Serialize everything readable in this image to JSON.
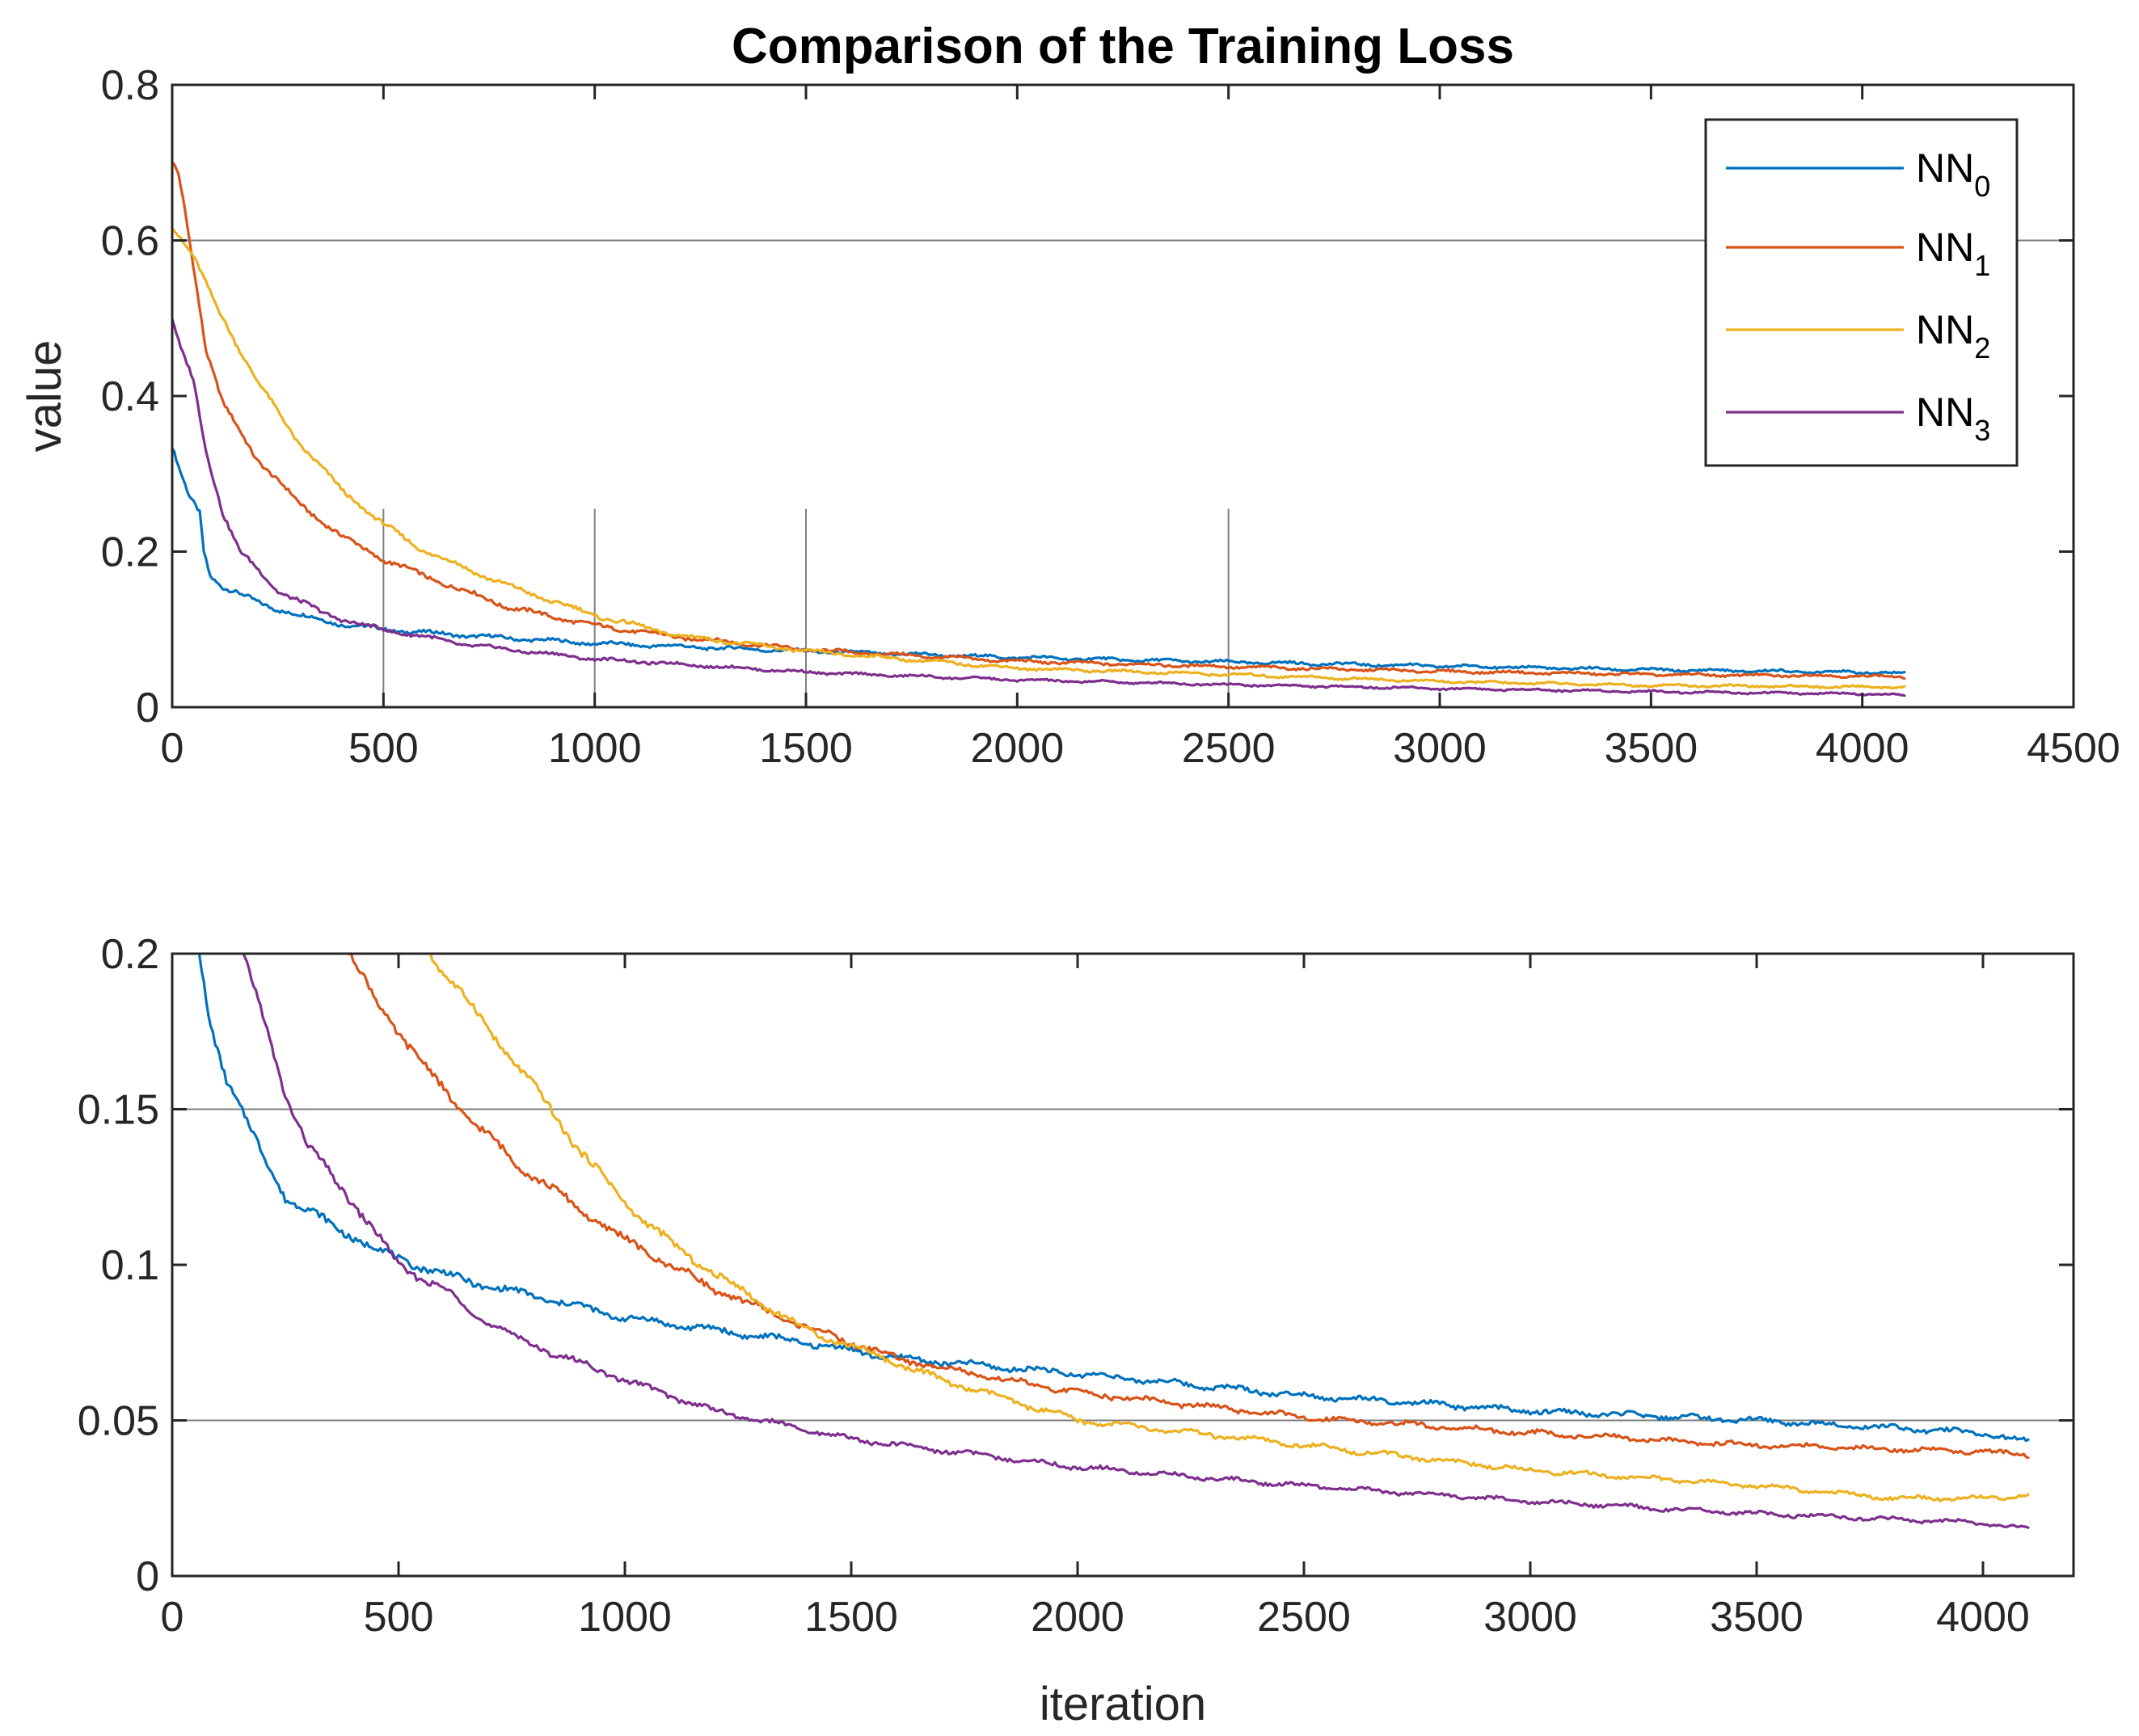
{
  "chart_data": [
    {
      "type": "line",
      "title": "Comparison of the Training Loss",
      "xlabel": "",
      "ylabel": "value",
      "xlim": [
        0,
        4500
      ],
      "ylim": [
        0,
        0.8
      ],
      "xticks": [
        "0",
        "500",
        "1000",
        "1500",
        "2000",
        "2500",
        "3000",
        "3500",
        "4000",
        "4500"
      ],
      "yticks": [
        "0",
        "0.2",
        "0.4",
        "0.6",
        "0.8"
      ],
      "grid_y": [
        0.6
      ],
      "vlines": [
        {
          "x": 500,
          "y_top": 0.255
        },
        {
          "x": 1000,
          "y_top": 0.255
        },
        {
          "x": 1500,
          "y_top": 0.255
        },
        {
          "x": 2500,
          "y_top": 0.255
        }
      ],
      "legend": {
        "location": "top-right",
        "entries": [
          {
            "base": "NN",
            "sub": "0"
          },
          {
            "base": "NN",
            "sub": "1"
          },
          {
            "base": "NN",
            "sub": "2"
          },
          {
            "base": "NN",
            "sub": "3"
          }
        ]
      },
      "series": [
        {
          "name": "NN0",
          "color": "#0072BD",
          "points": [
            [
              0,
              0.335
            ],
            [
              20,
              0.3
            ],
            [
              40,
              0.27
            ],
            [
              65,
              0.25
            ],
            [
              75,
              0.2
            ],
            [
              90,
              0.17
            ],
            [
              120,
              0.155
            ],
            [
              200,
              0.135
            ],
            [
              300,
              0.118
            ],
            [
              400,
              0.107
            ],
            [
              500,
              0.1
            ],
            [
              700,
              0.092
            ],
            [
              1000,
              0.082
            ],
            [
              1500,
              0.072
            ],
            [
              2000,
              0.064
            ],
            [
              2500,
              0.058
            ],
            [
              3000,
              0.053
            ],
            [
              3500,
              0.048
            ],
            [
              4000,
              0.045
            ],
            [
              4100,
              0.043
            ]
          ]
        },
        {
          "name": "NN1",
          "color": "#D95319",
          "points": [
            [
              0,
              0.7
            ],
            [
              15,
              0.685
            ],
            [
              30,
              0.64
            ],
            [
              50,
              0.57
            ],
            [
              80,
              0.46
            ],
            [
              120,
              0.39
            ],
            [
              200,
              0.32
            ],
            [
              300,
              0.262
            ],
            [
              400,
              0.22
            ],
            [
              500,
              0.19
            ],
            [
              600,
              0.168
            ],
            [
              800,
              0.128
            ],
            [
              1000,
              0.105
            ],
            [
              1200,
              0.09
            ],
            [
              1500,
              0.074
            ],
            [
              2000,
              0.059
            ],
            [
              2500,
              0.052
            ],
            [
              3000,
              0.046
            ],
            [
              3500,
              0.042
            ],
            [
              4000,
              0.04
            ],
            [
              4100,
              0.039
            ]
          ]
        },
        {
          "name": "NN2",
          "color": "#EDB120",
          "points": [
            [
              0,
              0.62
            ],
            [
              50,
              0.58
            ],
            [
              100,
              0.52
            ],
            [
              200,
              0.42
            ],
            [
              300,
              0.34
            ],
            [
              400,
              0.28
            ],
            [
              500,
              0.235
            ],
            [
              600,
              0.2
            ],
            [
              800,
              0.155
            ],
            [
              1000,
              0.118
            ],
            [
              1200,
              0.092
            ],
            [
              1500,
              0.072
            ],
            [
              2000,
              0.05
            ],
            [
              2500,
              0.042
            ],
            [
              3000,
              0.033
            ],
            [
              3500,
              0.028
            ],
            [
              4000,
              0.026
            ],
            [
              4100,
              0.026
            ]
          ]
        },
        {
          "name": "NN3",
          "color": "#7E2F8E",
          "points": [
            [
              0,
              0.5
            ],
            [
              20,
              0.46
            ],
            [
              50,
              0.42
            ],
            [
              80,
              0.33
            ],
            [
              120,
              0.25
            ],
            [
              160,
              0.2
            ],
            [
              250,
              0.15
            ],
            [
              350,
              0.123
            ],
            [
              450,
              0.105
            ],
            [
              500,
              0.1
            ],
            [
              700,
              0.08
            ],
            [
              1000,
              0.062
            ],
            [
              1500,
              0.045
            ],
            [
              2000,
              0.035
            ],
            [
              2500,
              0.029
            ],
            [
              3000,
              0.024
            ],
            [
              3500,
              0.02
            ],
            [
              4000,
              0.017
            ],
            [
              4100,
              0.015
            ]
          ]
        }
      ]
    },
    {
      "type": "line",
      "title": "",
      "xlabel": "iteration",
      "ylabel": "",
      "xlim": [
        0,
        4200
      ],
      "ylim": [
        0,
        0.2
      ],
      "xticks": [
        "0",
        "500",
        "1000",
        "1500",
        "2000",
        "2500",
        "3000",
        "3500",
        "4000"
      ],
      "yticks": [
        "0",
        "0.05",
        "0.1",
        "0.15",
        "0.2"
      ],
      "grid_y": [
        0.05,
        0.15
      ],
      "series": [
        {
          "name": "NN0",
          "color": "#0072BD",
          "points": [
            [
              60,
              0.2
            ],
            [
              80,
              0.18
            ],
            [
              120,
              0.16
            ],
            [
              200,
              0.135
            ],
            [
              250,
              0.122
            ],
            [
              350,
              0.113
            ],
            [
              450,
              0.105
            ],
            [
              500,
              0.102
            ],
            [
              600,
              0.097
            ],
            [
              700,
              0.093
            ],
            [
              800,
              0.09
            ],
            [
              1000,
              0.083
            ],
            [
              1200,
              0.079
            ],
            [
              1400,
              0.075
            ],
            [
              1600,
              0.07
            ],
            [
              2000,
              0.065
            ],
            [
              2500,
              0.058
            ],
            [
              3000,
              0.053
            ],
            [
              3500,
              0.05
            ],
            [
              4000,
              0.046
            ],
            [
              4100,
              0.043
            ]
          ]
        },
        {
          "name": "NN1",
          "color": "#D95319",
          "points": [
            [
              390,
              0.2
            ],
            [
              450,
              0.185
            ],
            [
              550,
              0.165
            ],
            [
              650,
              0.148
            ],
            [
              750,
              0.134
            ],
            [
              850,
              0.123
            ],
            [
              1000,
              0.108
            ],
            [
              1200,
              0.092
            ],
            [
              1400,
              0.08
            ],
            [
              1600,
              0.07
            ],
            [
              1800,
              0.064
            ],
            [
              2000,
              0.059
            ],
            [
              2500,
              0.051
            ],
            [
              3000,
              0.046
            ],
            [
              3500,
              0.042
            ],
            [
              4000,
              0.04
            ],
            [
              4100,
              0.039
            ]
          ]
        },
        {
          "name": "NN2",
          "color": "#EDB120",
          "points": [
            [
              570,
              0.2
            ],
            [
              650,
              0.185
            ],
            [
              800,
              0.157
            ],
            [
              900,
              0.137
            ],
            [
              1000,
              0.12
            ],
            [
              1100,
              0.107
            ],
            [
              1200,
              0.097
            ],
            [
              1300,
              0.088
            ],
            [
              1400,
              0.079
            ],
            [
              1500,
              0.074
            ],
            [
              1700,
              0.063
            ],
            [
              2000,
              0.05
            ],
            [
              2500,
              0.042
            ],
            [
              3000,
              0.034
            ],
            [
              3500,
              0.029
            ],
            [
              3800,
              0.025
            ],
            [
              4000,
              0.025
            ],
            [
              4100,
              0.026
            ]
          ]
        },
        {
          "name": "NN3",
          "color": "#7E2F8E",
          "points": [
            [
              155,
              0.2
            ],
            [
              200,
              0.18
            ],
            [
              250,
              0.155
            ],
            [
              300,
              0.138
            ],
            [
              400,
              0.12
            ],
            [
              500,
              0.1
            ],
            [
              600,
              0.092
            ],
            [
              700,
              0.081
            ],
            [
              800,
              0.074
            ],
            [
              1000,
              0.063
            ],
            [
              1200,
              0.053
            ],
            [
              1500,
              0.044
            ],
            [
              2000,
              0.035
            ],
            [
              2500,
              0.029
            ],
            [
              3000,
              0.024
            ],
            [
              3500,
              0.02
            ],
            [
              4000,
              0.017
            ],
            [
              4100,
              0.015
            ]
          ]
        }
      ]
    }
  ]
}
